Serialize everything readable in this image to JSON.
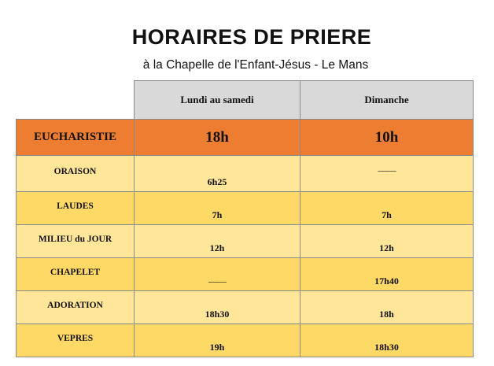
{
  "header": {
    "title": "HORAIRES DE PRIERE",
    "subtitle": "à la Chapelle de l'Enfant-Jésus - Le Mans"
  },
  "table": {
    "columns": [
      "Lundi au samedi",
      "Dimanche"
    ],
    "eucharistie": {
      "label": "EUCHARISTIE",
      "weekday": "18h",
      "sunday": "10h"
    },
    "rows": [
      {
        "label": "ORAISON",
        "weekday": "6h25",
        "sunday": "——"
      },
      {
        "label": "LAUDES",
        "weekday": "7h",
        "sunday": "7h"
      },
      {
        "label": "MILIEU du JOUR",
        "weekday": "12h",
        "sunday": "12h"
      },
      {
        "label": "CHAPELET",
        "weekday": "——",
        "sunday": "17h40"
      },
      {
        "label": "ADORATION",
        "weekday": "18h30",
        "sunday": "18h"
      },
      {
        "label": "VEPRES",
        "weekday": "19h",
        "sunday": "18h30"
      }
    ]
  },
  "colors": {
    "eucharistie_row": "#ed7d31",
    "row_dark": "#ffd966",
    "row_light": "#ffe699",
    "header_gray": "#d9d9d9"
  }
}
